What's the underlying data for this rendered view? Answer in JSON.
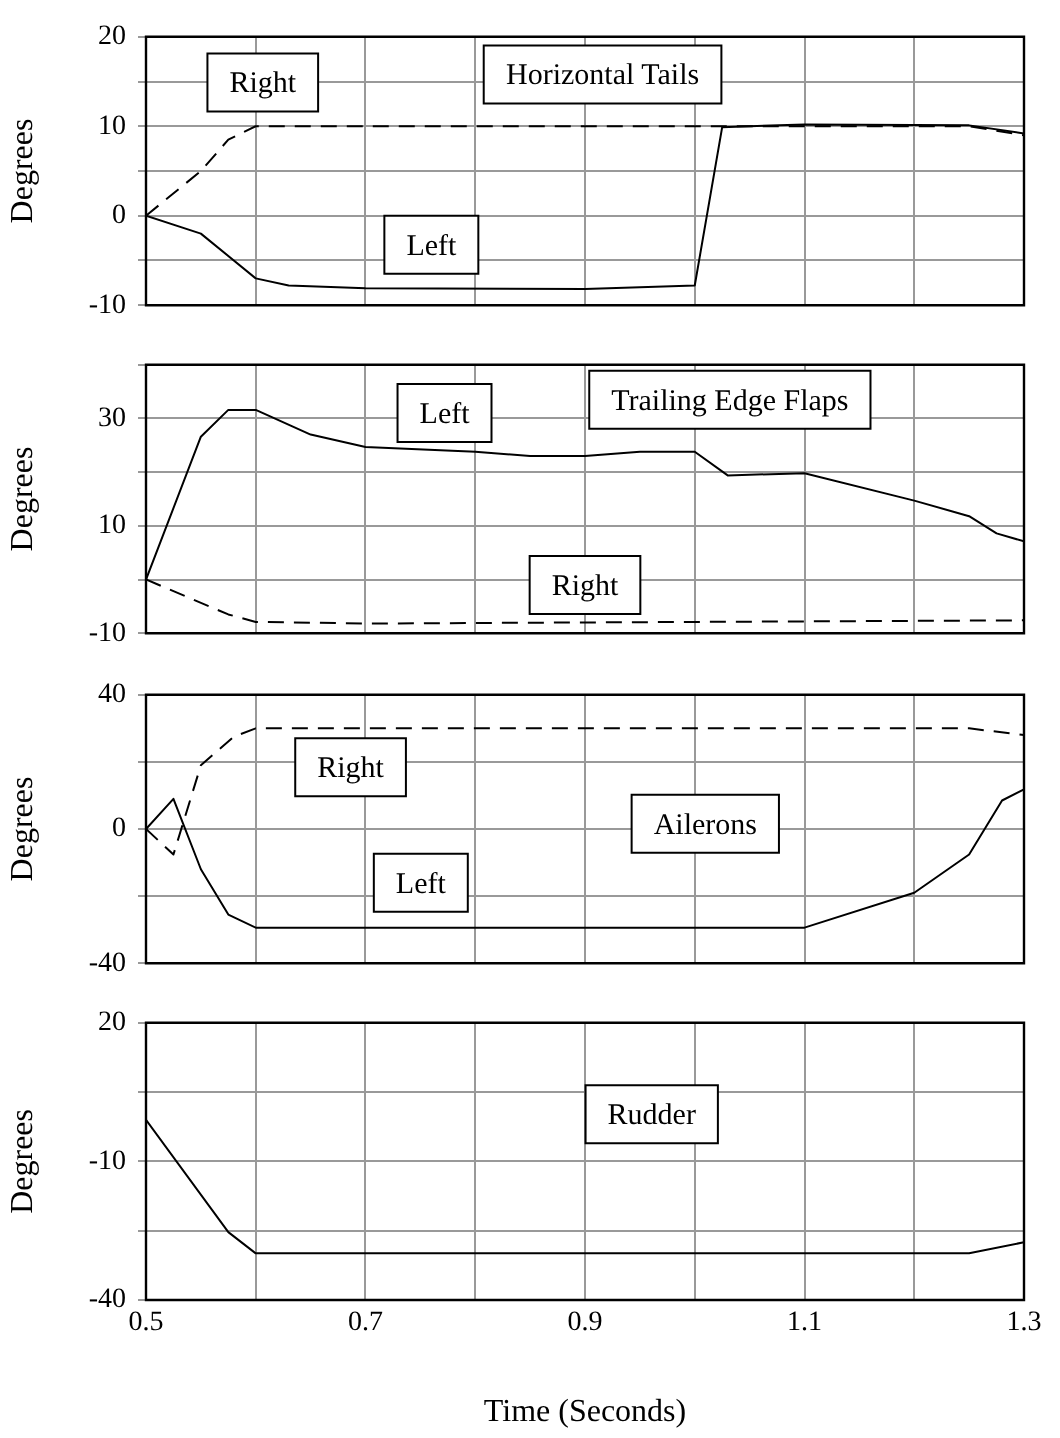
{
  "chart_data": [
    {
      "type": "line",
      "title": "Horizontal Tails",
      "ylabel": "Degrees",
      "xlim": [
        0.5,
        1.3
      ],
      "xticks": [
        0.5,
        {
          "value": 0.6,
          "label": null
        },
        0.7,
        {
          "value": 0.8,
          "label": null
        },
        0.9,
        {
          "value": 1.0,
          "label": null
        },
        1.1,
        {
          "value": 1.2,
          "label": null
        },
        1.3
      ],
      "ylim": [
        -10,
        20
      ],
      "yticks": [
        -10,
        {
          "value": -5,
          "label": null
        },
        0,
        {
          "value": 5,
          "label": null
        },
        10,
        {
          "value": 15,
          "label": null
        },
        20
      ],
      "grid": true,
      "tick_labels": "y",
      "series": [
        {
          "name": "Right",
          "color": "#000000",
          "line_style": "dashed",
          "x": [
            0.5,
            0.55,
            0.575,
            0.6,
            1.25,
            1.3
          ],
          "values": [
            0,
            5,
            8.5,
            10,
            10,
            9
          ]
        },
        {
          "name": "Left",
          "color": "#000000",
          "line_style": "solid",
          "x": [
            0.5,
            0.55,
            0.6,
            0.63,
            0.7,
            0.9,
            1.0,
            1.025,
            1.1,
            1.25,
            1.3
          ],
          "values": [
            0,
            -2,
            -7,
            -7.8,
            -8.1,
            -8.2,
            -7.8,
            9.9,
            10.2,
            10.1,
            9.2
          ]
        }
      ]
    },
    {
      "type": "line",
      "title": "Trailing Edge Flaps",
      "ylabel": "Degrees",
      "xlim": [
        0.5,
        1.3
      ],
      "xticks": [
        0.5,
        {
          "value": 0.6,
          "label": null
        },
        0.7,
        {
          "value": 0.8,
          "label": null
        },
        0.9,
        {
          "value": 1.0,
          "label": null
        },
        1.1,
        {
          "value": 1.2,
          "label": null
        },
        1.3
      ],
      "ylim": [
        -10,
        40
      ],
      "yticks": [
        -10,
        {
          "value": 0,
          "label": null
        },
        10,
        {
          "value": 20,
          "label": null
        },
        30,
        {
          "value": 40,
          "label": null
        }
      ],
      "grid": true,
      "tick_labels": "y",
      "series": [
        {
          "name": "Left",
          "color": "#000000",
          "line_style": "solid",
          "x": [
            0.5,
            0.55,
            0.575,
            0.6,
            0.65,
            0.7,
            0.8,
            0.85,
            0.9,
            0.95,
            1.0,
            1.03,
            1.1,
            1.2,
            1.25,
            1.275,
            1.3
          ],
          "values": [
            0,
            26.6,
            31.6,
            31.6,
            27,
            24.7,
            23.8,
            23,
            23,
            23.8,
            23.8,
            19.4,
            19.8,
            14.7,
            11.8,
            8.6,
            7.1
          ]
        },
        {
          "name": "Right",
          "color": "#000000",
          "line_style": "dashed",
          "x": [
            0.5,
            0.575,
            0.6,
            0.7,
            1.3
          ],
          "values": [
            0,
            -6.5,
            -7.9,
            -8.2,
            -7.6
          ]
        }
      ]
    },
    {
      "type": "line",
      "title": "Ailerons",
      "ylabel": "Degrees",
      "xlim": [
        0.5,
        1.3
      ],
      "xticks": [
        0.5,
        {
          "value": 0.6,
          "label": null
        },
        0.7,
        {
          "value": 0.8,
          "label": null
        },
        0.9,
        {
          "value": 1.0,
          "label": null
        },
        1.1,
        {
          "value": 1.2,
          "label": null
        },
        1.3
      ],
      "ylim": [
        -40,
        40
      ],
      "yticks": [
        -40,
        {
          "value": -20,
          "label": null
        },
        0,
        {
          "value": 20,
          "label": null
        },
        40
      ],
      "grid": true,
      "tick_labels": "y",
      "series": [
        {
          "name": "Right",
          "color": "#000000",
          "line_style": "dashed",
          "x": [
            0.5,
            0.525,
            0.55,
            0.58,
            0.6,
            1.25,
            1.3
          ],
          "values": [
            0,
            -7.6,
            19,
            27.5,
            30,
            30,
            28
          ]
        },
        {
          "name": "Left",
          "color": "#000000",
          "line_style": "solid",
          "x": [
            0.5,
            0.525,
            0.55,
            0.575,
            0.6,
            1.1,
            1.2,
            1.25,
            1.28,
            1.3
          ],
          "values": [
            0,
            9,
            -12,
            -25.5,
            -29.4,
            -29.4,
            -19,
            -7.6,
            8.5,
            11.8
          ]
        }
      ]
    },
    {
      "type": "line",
      "title": "Rudder",
      "xlabel": "Time (Seconds)",
      "ylabel": "Degrees",
      "xlim": [
        0.5,
        1.3
      ],
      "xticks": [
        0.5,
        {
          "value": 0.6,
          "label": null
        },
        0.7,
        {
          "value": 0.8,
          "label": null
        },
        0.9,
        {
          "value": 1.0,
          "label": null
        },
        1.1,
        {
          "value": 1.2,
          "label": null
        },
        1.3
      ],
      "ylim": [
        -40,
        20
      ],
      "yticks": [
        -40,
        {
          "value": -25,
          "label": null
        },
        -10,
        {
          "value": 5,
          "label": null
        },
        20
      ],
      "grid": true,
      "series": [
        {
          "color": "#000000",
          "line_style": "solid",
          "x": [
            0.5,
            0.575,
            0.6,
            1.25,
            1.3
          ],
          "values": [
            -1,
            -25.3,
            -29.9,
            -29.9,
            -27.5
          ]
        }
      ]
    }
  ]
}
